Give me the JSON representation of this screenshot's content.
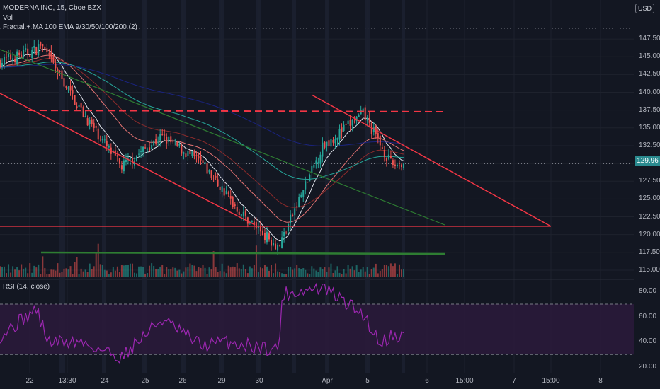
{
  "header": {
    "symbol_line": "MODERNA INC, 15, Cboe BZX",
    "vol_label": "Vol",
    "indicator_line": "Fractal + MA 100 EMA 9/30/50/100/200 (2)",
    "currency_button": "USD"
  },
  "rsi": {
    "label": "RSI (14, close)",
    "upper_band": 70,
    "lower_band": 30
  },
  "price_axis": {
    "ticks": [
      "147.50",
      "145.00",
      "142.50",
      "140.00",
      "137.50",
      "135.00",
      "132.50",
      "130.00",
      "127.50",
      "125.00",
      "122.50",
      "120.00",
      "117.50",
      "115.00"
    ],
    "last_price": "129.96"
  },
  "rsi_axis": {
    "ticks": [
      "80.00",
      "60.00",
      "40.00",
      "20.00"
    ]
  },
  "time_axis": {
    "ticks": [
      "22",
      "13:30",
      "24",
      "25",
      "26",
      "29",
      "30",
      "Apr",
      "5",
      "6",
      "15:00",
      "7",
      "15:00",
      "8"
    ]
  },
  "colors": {
    "background": "#131722",
    "up_candle": "#26a69a",
    "down_candle": "#ef5350",
    "trendline": "#f23645",
    "green_trendline": "#2e7d32",
    "rsi_line": "#9c27b0",
    "rsi_band": "#2a1a3a"
  },
  "chart_data": [
    {
      "type": "candlestick",
      "symbol": "MODERNA INC",
      "interval": "15",
      "exchange": "Cboe BZX",
      "ylim": [
        114,
        149
      ],
      "price_path_x_day_index": [
        0,
        0.9,
        1.0,
        2.0,
        3.0,
        4.0,
        5.0,
        6.0,
        6.9,
        8.0,
        9.0,
        9.7,
        10.0
      ],
      "price_path_close": [
        144.3,
        146.0,
        146.8,
        137.5,
        129.5,
        133.8,
        130.0,
        122.8,
        118.3,
        132.5,
        137.0,
        129.8,
        129.96
      ],
      "last_price": 129.96,
      "horizontal_levels": [
        136.6,
        121.2,
        117.3
      ]
    },
    {
      "type": "line",
      "name": "RSI (14, close)",
      "ylim": [
        15,
        88
      ],
      "x_day_index": [
        0,
        0.9,
        1.2,
        2.0,
        3.0,
        4.0,
        5.0,
        5.6,
        6.0,
        6.9,
        7.0,
        8.0,
        9.0,
        9.4,
        9.7,
        10.0
      ],
      "values": [
        45,
        66,
        40,
        40,
        28,
        58,
        37,
        40,
        38,
        34,
        78,
        83,
        62,
        40,
        45,
        45
      ],
      "bands": [
        70,
        30
      ]
    }
  ]
}
